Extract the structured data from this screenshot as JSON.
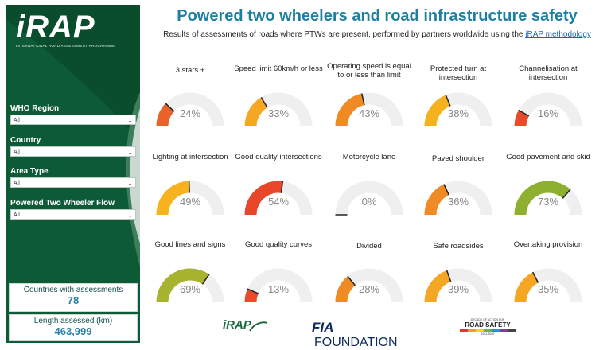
{
  "header": {
    "title": "Powered two wheelers and road infrastructure safety",
    "subtitle_text": "Results of assessments of roads where PTWs are present, performed by partners worldwide using the",
    "subtitle_link": "iRAP methodology"
  },
  "sidebar": {
    "logo": "iRAP",
    "logo_sub": "INTERNATIONAL ROAD ASSESSMENT PROGRAMME",
    "filters": [
      {
        "label": "WHO Region",
        "value": "All"
      },
      {
        "label": "Country",
        "value": "All"
      },
      {
        "label": "Area Type",
        "value": "All"
      },
      {
        "label": "Powered Two Wheeler Flow",
        "value": "All"
      }
    ],
    "kpis": [
      {
        "label": "Countries with assessments",
        "value": "78"
      },
      {
        "label": "Length assessed (km)",
        "value": "463,999"
      }
    ]
  },
  "gauges": [
    {
      "label": "3 stars +",
      "value": "24%",
      "pct": 24,
      "color": "#e8632b"
    },
    {
      "label": "Speed limit 60km/h or less",
      "value": "33%",
      "pct": 33,
      "color": "#f5a623"
    },
    {
      "label": "Operating speed is equal to or less than limit",
      "value": "43%",
      "pct": 43,
      "color": "#f08a24"
    },
    {
      "label": "Protected turn at intersection",
      "value": "38%",
      "pct": 38,
      "color": "#f5b21e"
    },
    {
      "label": "Channelisation at intersection",
      "value": "16%",
      "pct": 16,
      "color": "#e84b2b"
    },
    {
      "label": "Lighting at intersection",
      "value": "49%",
      "pct": 49,
      "color": "#f7b21e"
    },
    {
      "label": "Good quality intersections",
      "value": "54%",
      "pct": 54,
      "color": "#e8462b"
    },
    {
      "label": "Motorcycle lane",
      "value": "0%",
      "pct": 0,
      "color": "#e84b2b"
    },
    {
      "label": "Paved shoulder",
      "value": "36%",
      "pct": 36,
      "color": "#f08a24"
    },
    {
      "label": "Good pavement and skid",
      "value": "73%",
      "pct": 73,
      "color": "#8db030"
    },
    {
      "label": "Good lines and signs",
      "value": "69%",
      "pct": 69,
      "color": "#a7b22e"
    },
    {
      "label": "Good quality curves",
      "value": "13%",
      "pct": 13,
      "color": "#e84b2b"
    },
    {
      "label": "Divided",
      "value": "28%",
      "pct": 28,
      "color": "#f08a24"
    },
    {
      "label": "Safe roadsides",
      "value": "39%",
      "pct": 39,
      "color": "#f5a623"
    },
    {
      "label": "Overtaking provision",
      "value": "35%",
      "pct": 35,
      "color": "#f5a623"
    }
  ],
  "footer": {
    "irap_logo": "iRAP",
    "fia_mark": "FIA",
    "fia_text": "FOUNDATION",
    "decade_top": "DECADE OF ACTION FOR",
    "decade_main": "ROAD SAFETY",
    "decade_years": "2011-2020"
  }
}
